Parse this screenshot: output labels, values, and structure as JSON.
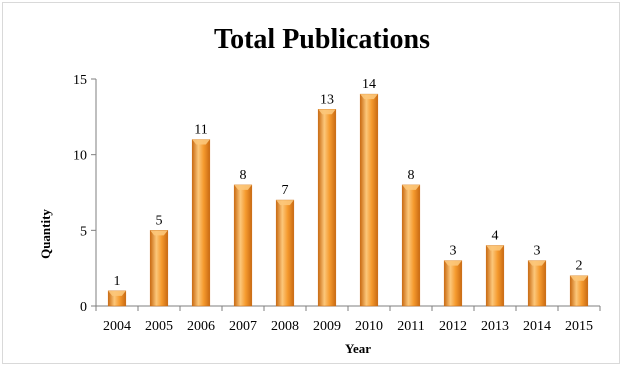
{
  "chart_data": {
    "type": "bar",
    "title": "Total Publications",
    "xlabel": "Year",
    "ylabel": "Quantity",
    "categories": [
      "2004",
      "2005",
      "2006",
      "2007",
      "2008",
      "2009",
      "2010",
      "2011",
      "2012",
      "2013",
      "2014",
      "2015"
    ],
    "values": [
      1,
      5,
      11,
      8,
      7,
      13,
      14,
      8,
      3,
      4,
      3,
      2
    ],
    "ylim": [
      0,
      15
    ],
    "yticks": [
      0,
      5,
      10,
      15
    ],
    "grid": false,
    "legend": "none",
    "bar_color": "#f59a2e",
    "bar_highlight": "#fcc77a",
    "bar_shadow": "#c96a12"
  }
}
